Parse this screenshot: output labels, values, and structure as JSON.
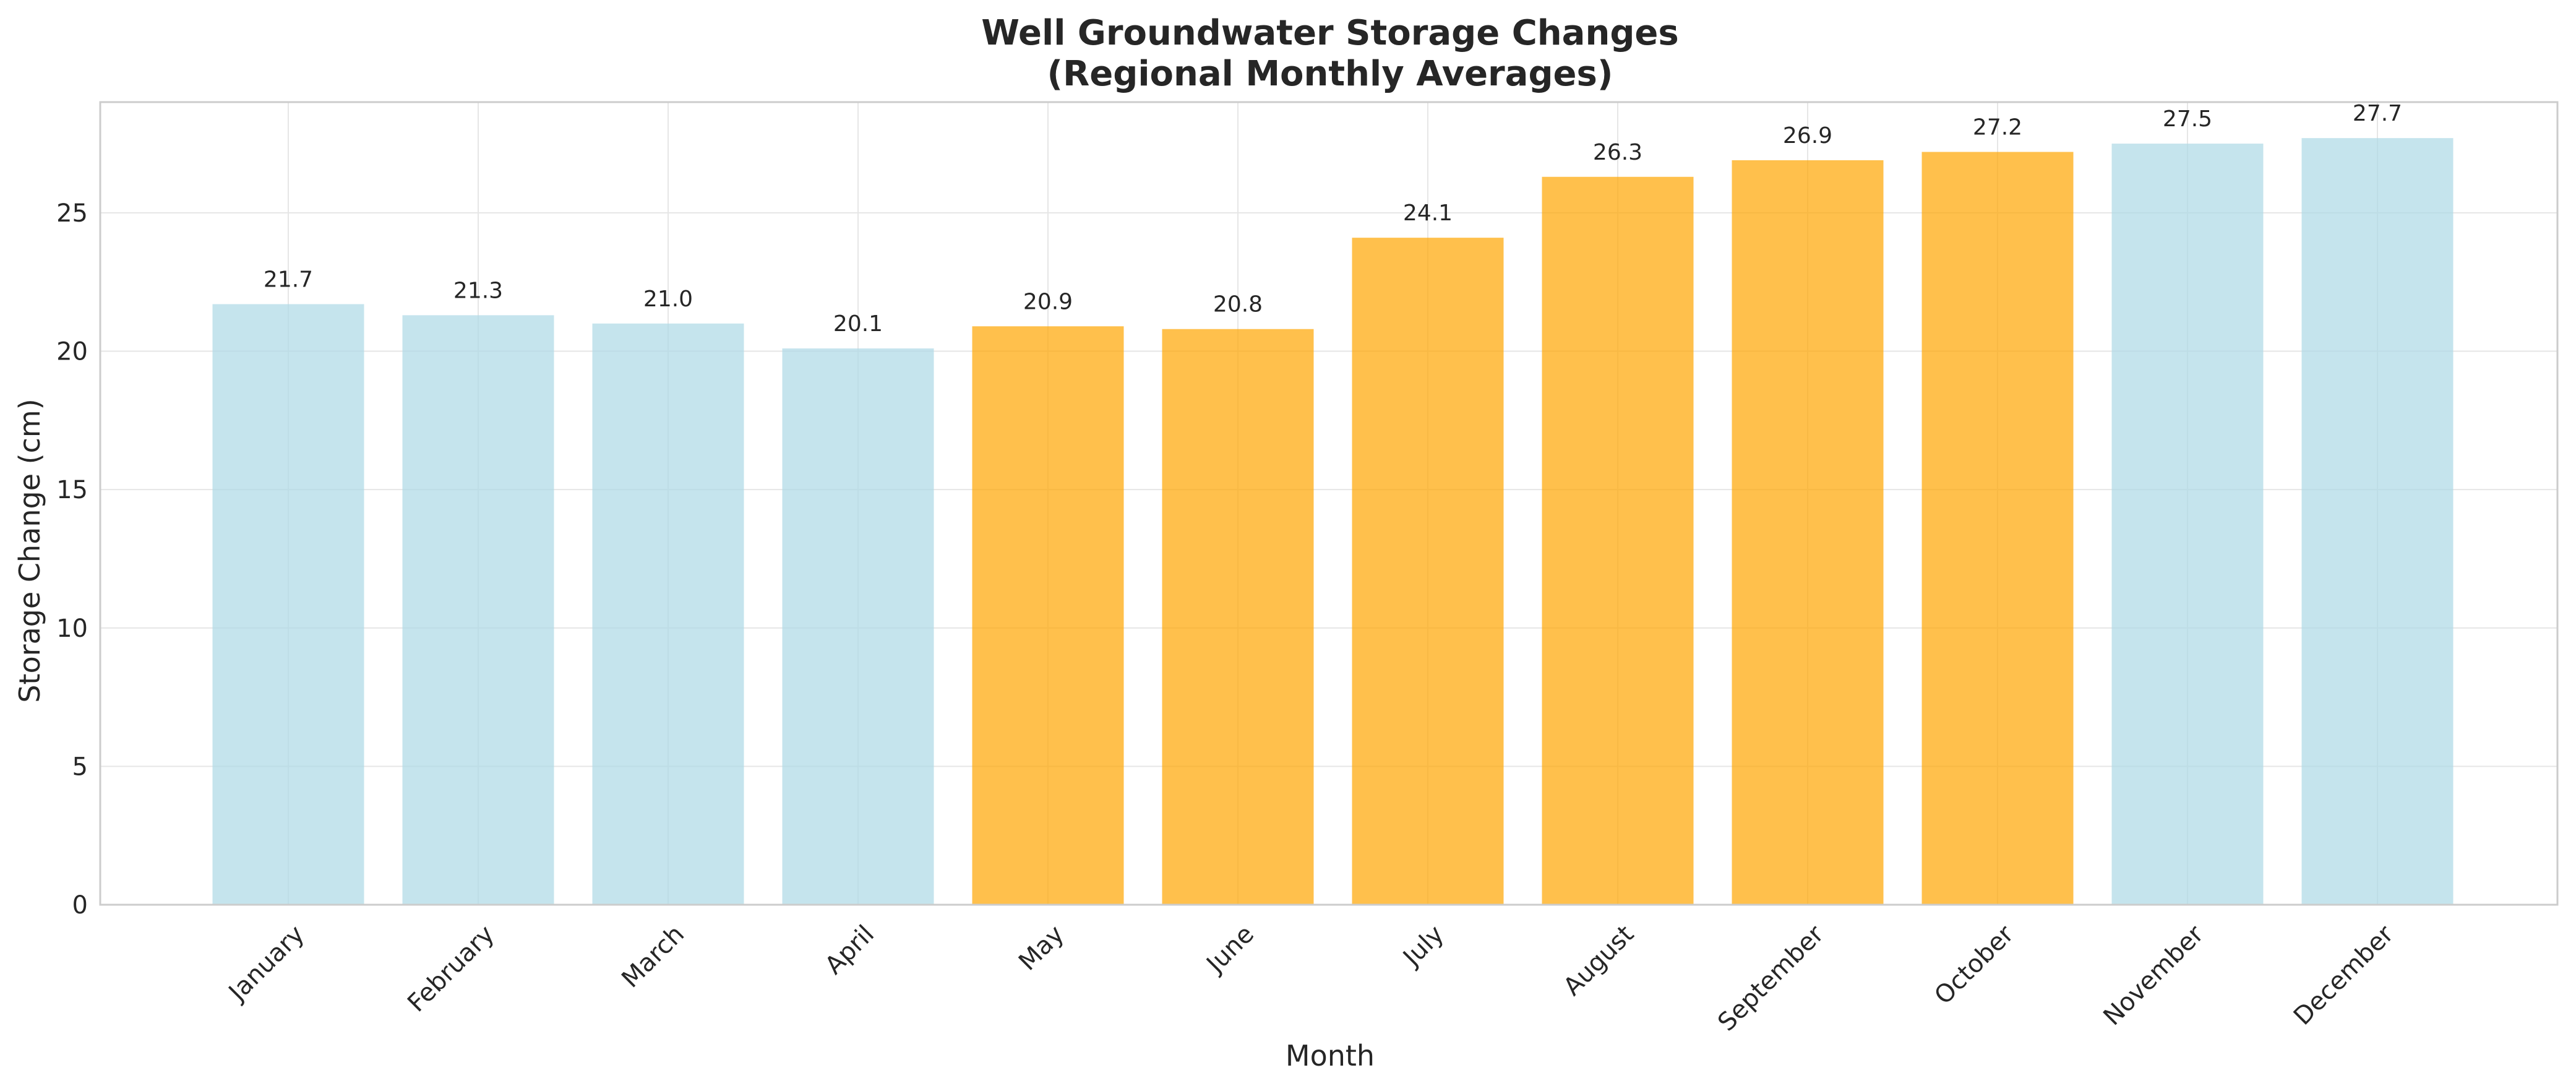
{
  "chart_data": {
    "type": "bar",
    "title": "Well Groundwater Storage Changes",
    "subtitle": "(Regional Monthly Averages)",
    "xlabel": "Month",
    "ylabel": "Storage Change (cm)",
    "ylim": [
      0,
      29
    ],
    "yticks": [
      0,
      5,
      10,
      15,
      20,
      25
    ],
    "grid": true,
    "categories": [
      "January",
      "February",
      "March",
      "April",
      "May",
      "June",
      "July",
      "August",
      "September",
      "October",
      "November",
      "December"
    ],
    "values": [
      21.7,
      21.3,
      21.0,
      20.1,
      20.9,
      20.8,
      24.1,
      26.3,
      26.9,
      27.2,
      27.5,
      27.7
    ],
    "value_labels": [
      "21.7",
      "21.3",
      "21.0",
      "20.1",
      "20.9",
      "20.8",
      "24.1",
      "26.3",
      "26.9",
      "27.2",
      "27.5",
      "27.7"
    ],
    "bar_colors": [
      "#add8e6",
      "#add8e6",
      "#add8e6",
      "#add8e6",
      "#ffa500",
      "#ffa500",
      "#ffa500",
      "#ffa500",
      "#ffa500",
      "#ffa500",
      "#add8e6",
      "#add8e6"
    ],
    "bar_opacity": 0.7
  }
}
